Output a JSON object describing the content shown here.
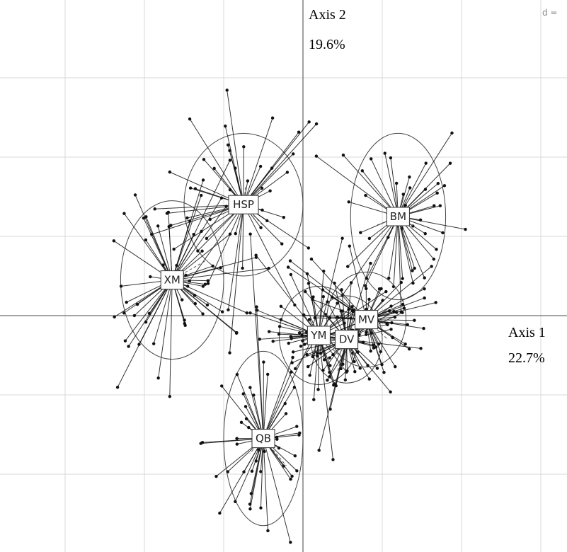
{
  "chart_data": {
    "type": "scatter",
    "subtype": "star-plot with confidence ellipses (factorial map)",
    "x_axis": {
      "label": "Axis 1",
      "value": "22.7%"
    },
    "y_axis": {
      "label": "Axis 2",
      "value": "19.6%"
    },
    "xlim": [
      -4,
      3.4
    ],
    "ylim": [
      -3,
      4
    ],
    "grid": true,
    "grid_step": 1,
    "corner_label": "d =",
    "groups": [
      {
        "label": "HSP",
        "center": [
          -0.75,
          1.4
        ],
        "spread": [
          0.75,
          0.95
        ],
        "n": 48,
        "ellipse": [
          0.75,
          0.9
        ]
      },
      {
        "label": "XM",
        "center": [
          -1.65,
          0.45
        ],
        "spread": [
          0.65,
          0.95
        ],
        "n": 60,
        "ellipse": [
          0.65,
          1.0
        ]
      },
      {
        "label": "BM",
        "center": [
          1.2,
          1.25
        ],
        "spread": [
          0.6,
          0.95
        ],
        "n": 48,
        "ellipse": [
          0.6,
          1.05
        ]
      },
      {
        "label": "YM",
        "center": [
          0.2,
          -0.25
        ],
        "spread": [
          0.5,
          0.6
        ],
        "n": 55,
        "ellipse": [
          0.5,
          0.62
        ]
      },
      {
        "label": "DV",
        "center": [
          0.55,
          -0.3
        ],
        "spread": [
          0.45,
          0.55
        ],
        "n": 55,
        "ellipse": [
          0.45,
          0.55
        ]
      },
      {
        "label": "MV",
        "center": [
          0.8,
          -0.05
        ],
        "spread": [
          0.5,
          0.55
        ],
        "n": 55,
        "ellipse": [
          0.5,
          0.6
        ]
      },
      {
        "label": "QB",
        "center": [
          -0.5,
          -1.55
        ],
        "spread": [
          0.5,
          1.05
        ],
        "n": 55,
        "ellipse": [
          0.5,
          1.1
        ]
      }
    ]
  }
}
